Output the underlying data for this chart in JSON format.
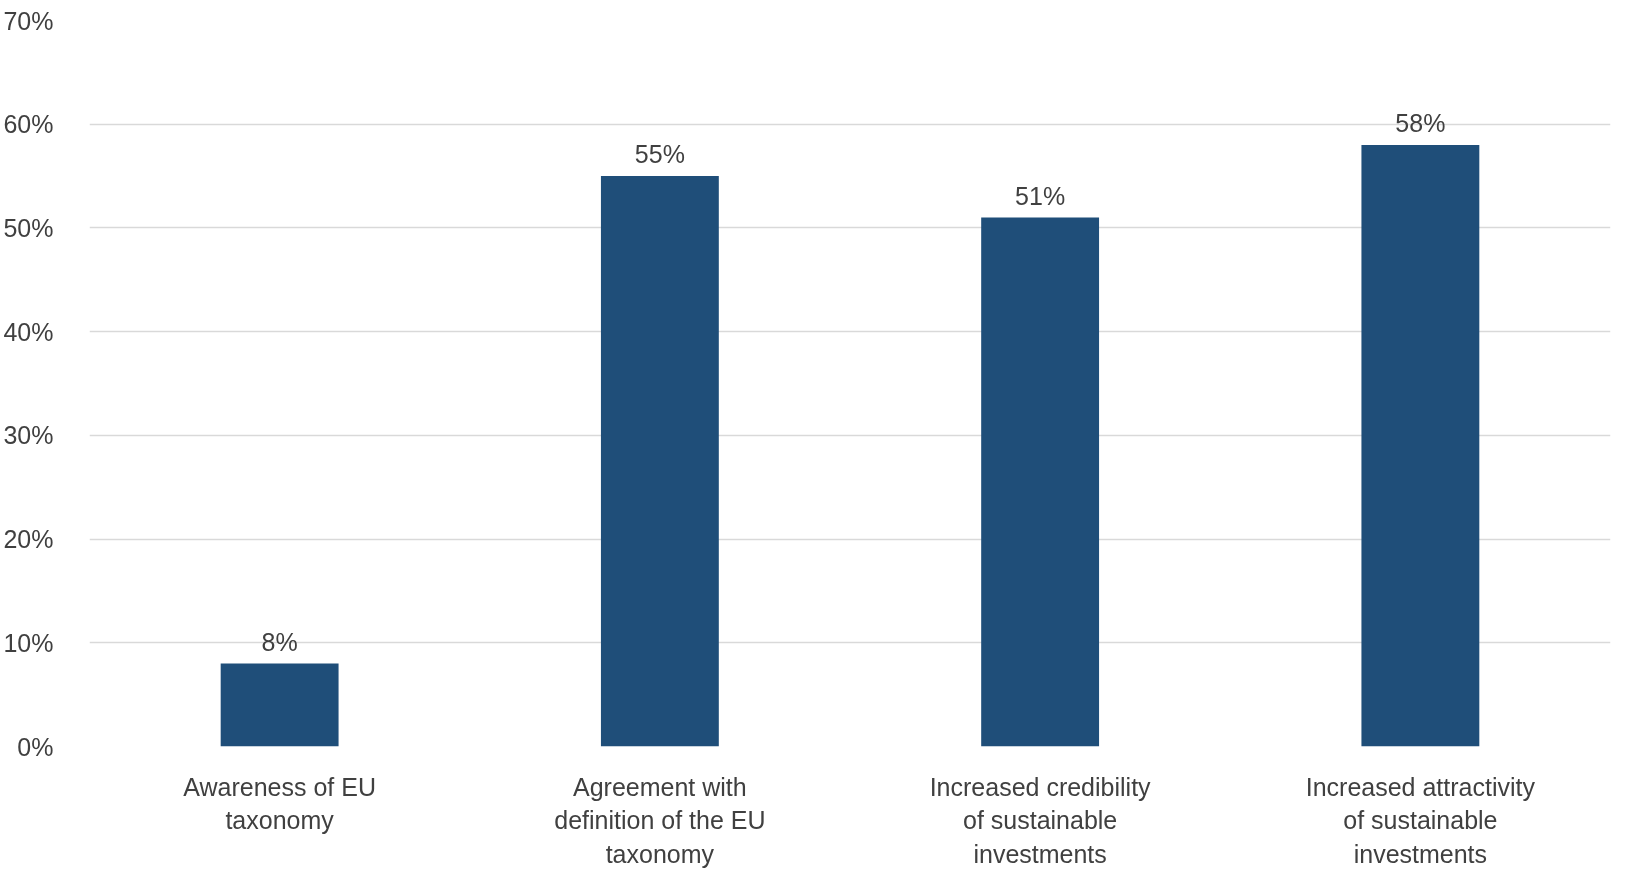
{
  "chart_data": {
    "type": "bar",
    "categories": [
      "Awareness of EU taxonomy",
      "Agreement with definition of the EU taxonomy",
      "Increased credibility of sustainable investments",
      "Increased attractivity of sustainable investments"
    ],
    "values": [
      8,
      55,
      51,
      58
    ],
    "color": "#1f4e79",
    "value_labels": [
      "8%",
      "55%",
      "51%",
      "58%"
    ],
    "ylim": [
      0,
      70
    ],
    "yticks": [
      {
        "value": 0,
        "label": "0%"
      },
      {
        "value": 10,
        "label": "10%"
      },
      {
        "value": 20,
        "label": "20%"
      },
      {
        "value": 30,
        "label": "30%"
      },
      {
        "value": 40,
        "label": "40%"
      },
      {
        "value": 50,
        "label": "50%"
      },
      {
        "value": 60,
        "label": "60%"
      },
      {
        "value": 70,
        "label": "70%"
      }
    ],
    "grid": "y"
  }
}
